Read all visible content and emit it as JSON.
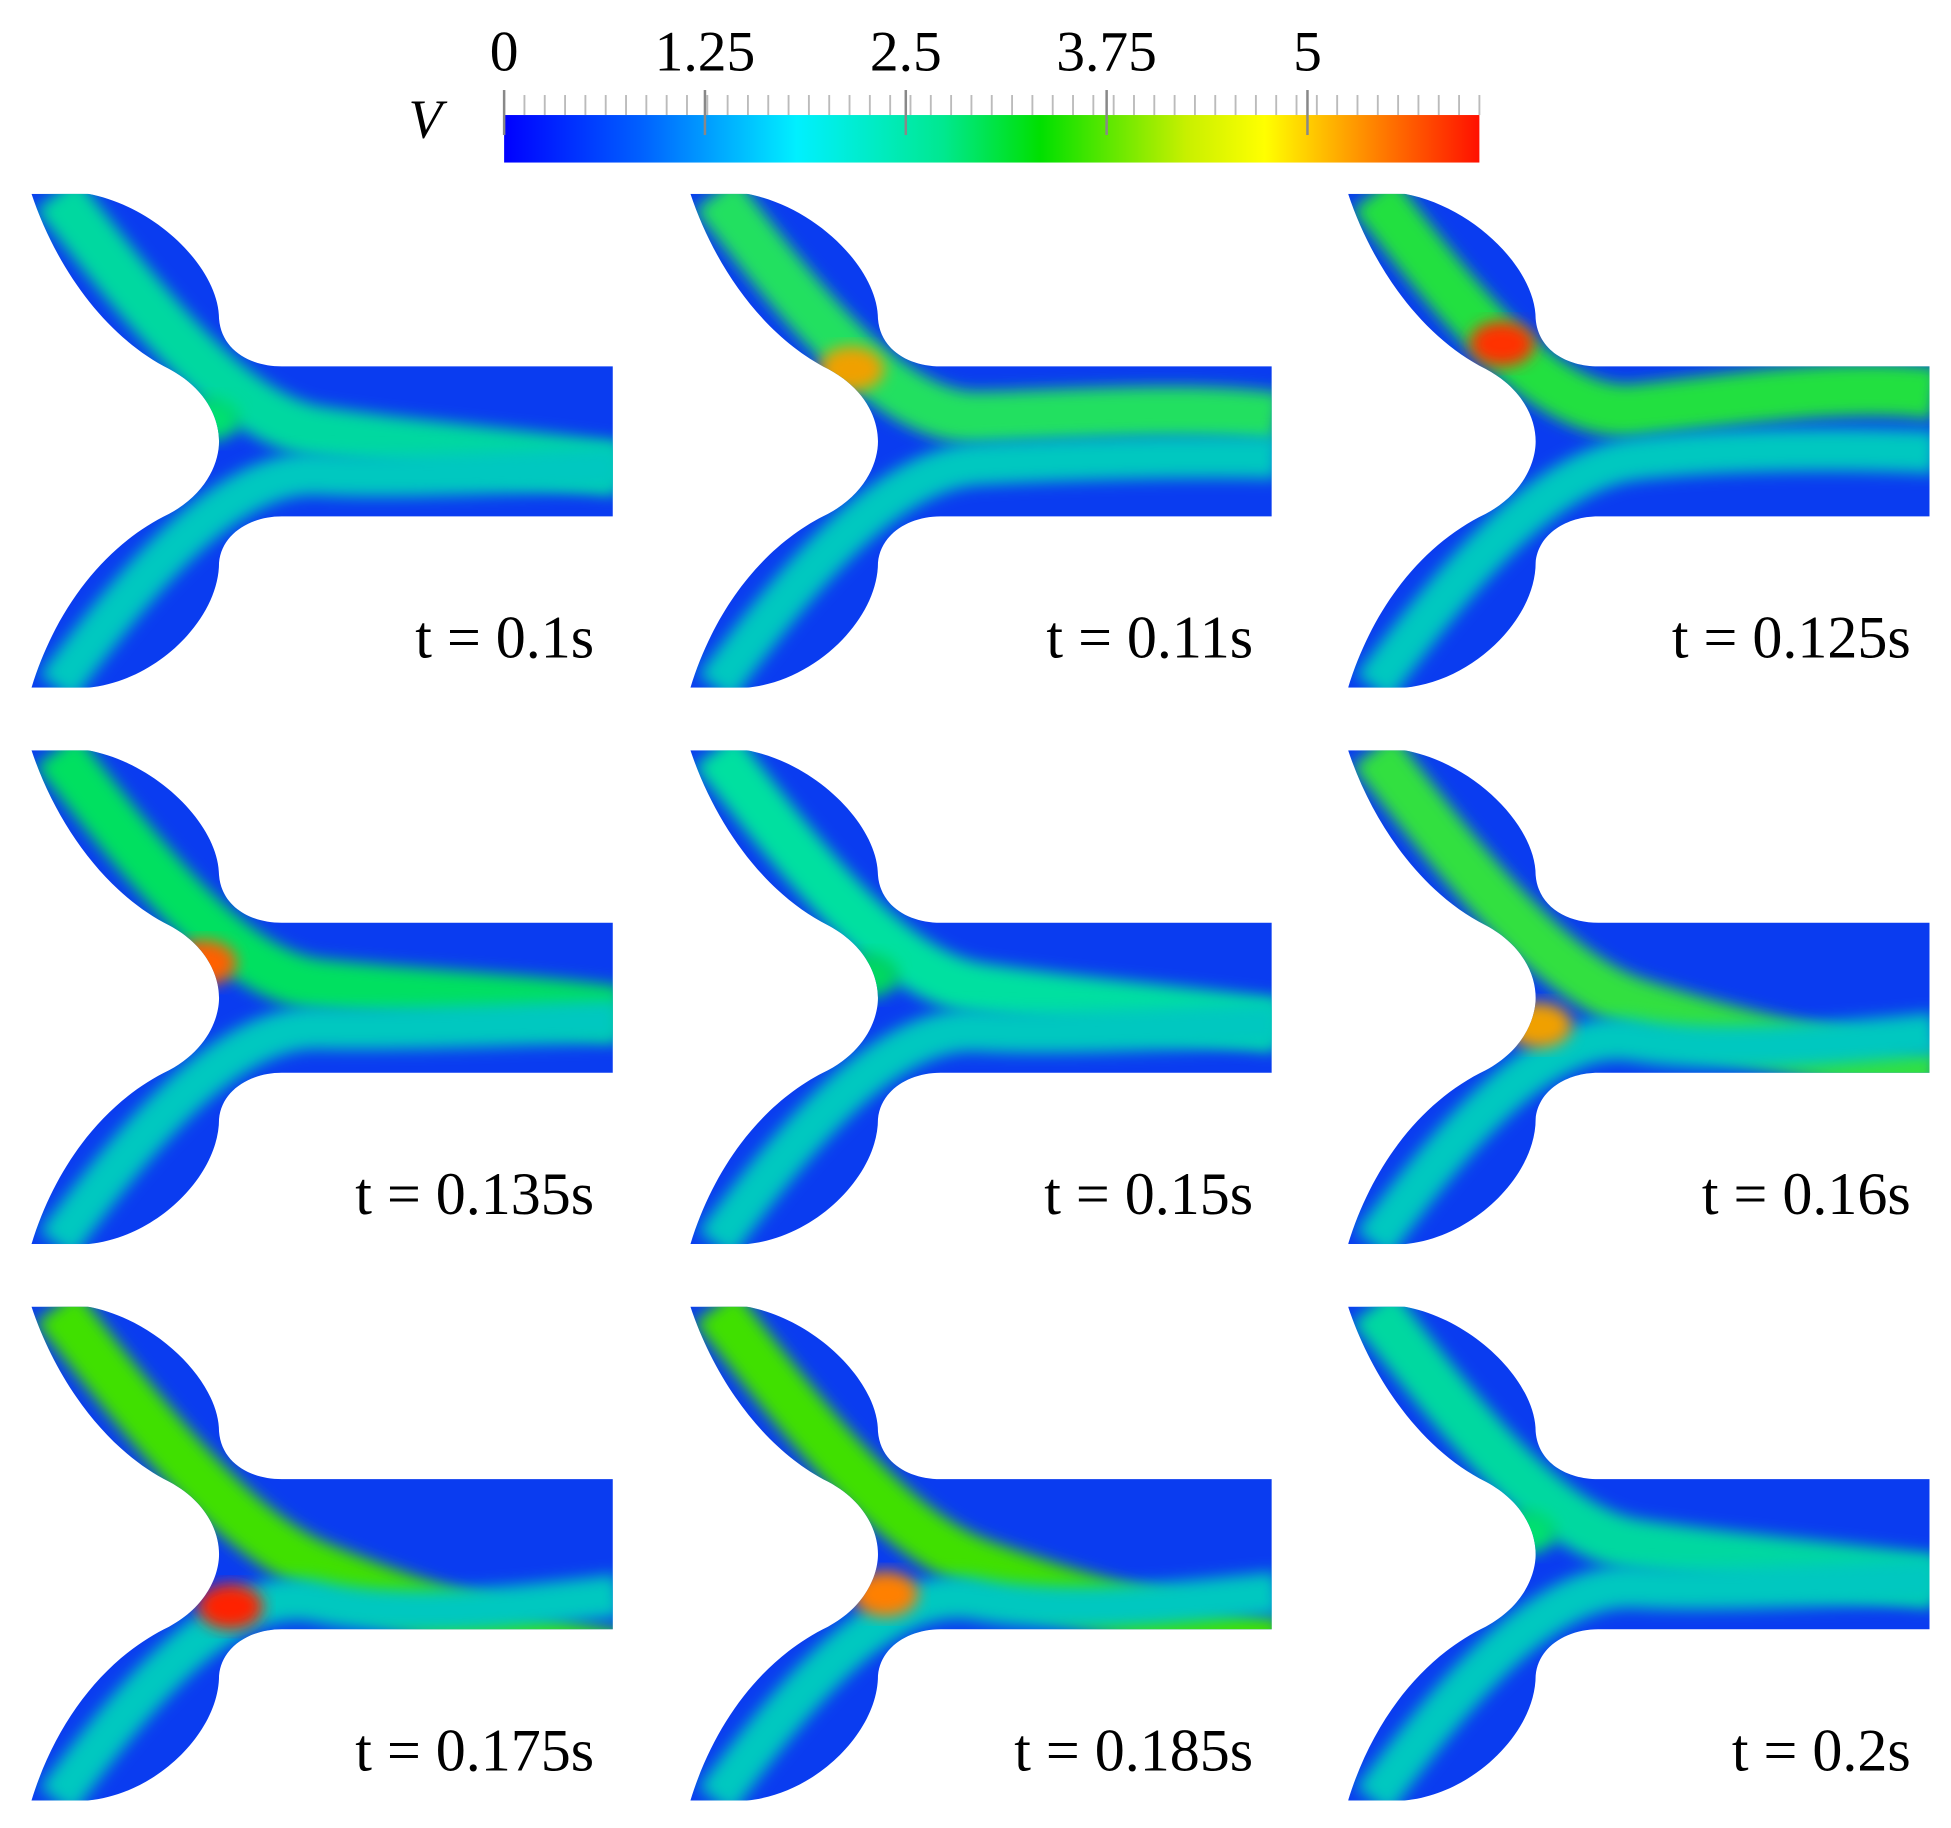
{
  "colorbar": {
    "label": "V",
    "range": [
      0,
      6.07
    ],
    "ticks": [
      0,
      1.25,
      2.5,
      3.75,
      5
    ]
  },
  "panels": [
    {
      "label": "t = 0.1s"
    },
    {
      "label": "t = 0.11s"
    },
    {
      "label": "t = 0.125s"
    },
    {
      "label": "t = 0.135s"
    },
    {
      "label": "t = 0.15s"
    },
    {
      "label": "t = 0.16s"
    },
    {
      "label": "t = 0.175s"
    },
    {
      "label": "t = 0.185s"
    },
    {
      "label": "t = 0.2s"
    }
  ]
}
